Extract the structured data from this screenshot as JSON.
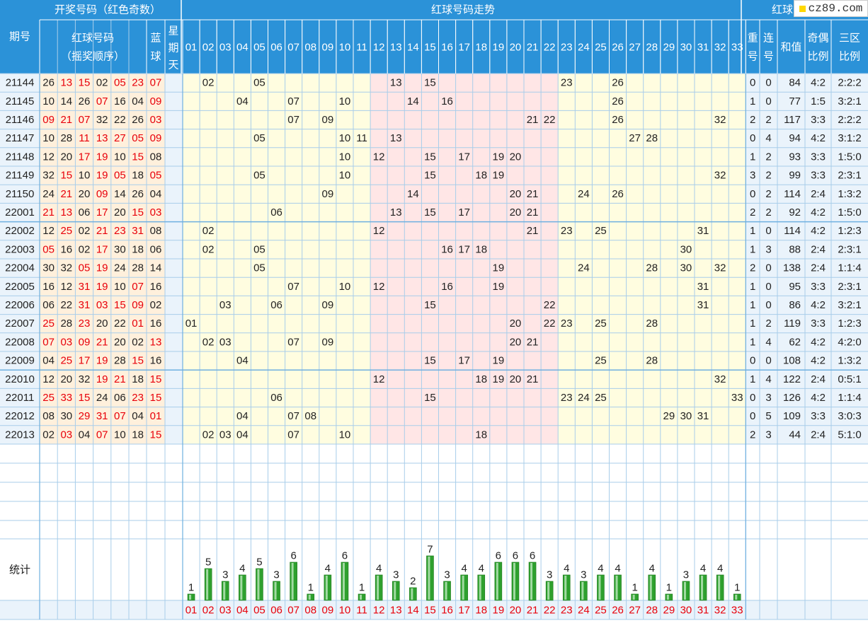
{
  "logo": "cz89.com",
  "header": {
    "period": "期号",
    "draw_group": "开奖号码（红色奇数）",
    "red_numbers": "红球号码",
    "red_numbers_sub": "（摇奖顺序）",
    "blue": [
      "蓝",
      "球"
    ],
    "weekday": [
      "星",
      "期",
      "天"
    ],
    "trend": "红球号码走势",
    "right_group": "红球",
    "repeat": [
      "重",
      "号"
    ],
    "consecutive": [
      "连",
      "号"
    ],
    "sum": "和值",
    "odd_even": [
      "奇偶",
      "比例"
    ],
    "zone": [
      "三区",
      "比例"
    ]
  },
  "columns": [
    "01",
    "02",
    "03",
    "04",
    "05",
    "06",
    "07",
    "08",
    "09",
    "10",
    "11",
    "12",
    "13",
    "14",
    "15",
    "16",
    "17",
    "18",
    "19",
    "20",
    "21",
    "22",
    "23",
    "24",
    "25",
    "26",
    "27",
    "28",
    "29",
    "30",
    "31",
    "32",
    "33"
  ],
  "stats_label": "统计",
  "chart_data": {
    "type": "table",
    "rows": [
      {
        "period": "21144",
        "red": [
          "26",
          "13",
          "15",
          "02",
          "05",
          "23"
        ],
        "blue": "07",
        "repeat": "0",
        "consecutive": "0",
        "sum": "84",
        "odd_even": "4:2",
        "zone": "2:2:2"
      },
      {
        "period": "21145",
        "red": [
          "10",
          "14",
          "26",
          "07",
          "16",
          "04"
        ],
        "blue": "09",
        "repeat": "1",
        "consecutive": "0",
        "sum": "77",
        "odd_even": "1:5",
        "zone": "3:2:1"
      },
      {
        "period": "21146",
        "red": [
          "09",
          "21",
          "07",
          "32",
          "22",
          "26"
        ],
        "blue": "03",
        "repeat": "2",
        "consecutive": "2",
        "sum": "117",
        "odd_even": "3:3",
        "zone": "2:2:2"
      },
      {
        "period": "21147",
        "red": [
          "10",
          "28",
          "11",
          "13",
          "27",
          "05"
        ],
        "blue": "09",
        "repeat": "0",
        "consecutive": "4",
        "sum": "94",
        "odd_even": "4:2",
        "zone": "3:1:2"
      },
      {
        "period": "21148",
        "red": [
          "12",
          "20",
          "17",
          "19",
          "10",
          "15"
        ],
        "blue": "08",
        "repeat": "1",
        "consecutive": "2",
        "sum": "93",
        "odd_even": "3:3",
        "zone": "1:5:0"
      },
      {
        "period": "21149",
        "red": [
          "32",
          "15",
          "10",
          "19",
          "05",
          "18"
        ],
        "blue": "05",
        "repeat": "3",
        "consecutive": "2",
        "sum": "99",
        "odd_even": "3:3",
        "zone": "2:3:1"
      },
      {
        "period": "21150",
        "red": [
          "24",
          "21",
          "20",
          "09",
          "14",
          "26"
        ],
        "blue": "04",
        "repeat": "0",
        "consecutive": "2",
        "sum": "114",
        "odd_even": "2:4",
        "zone": "1:3:2"
      },
      {
        "period": "22001",
        "red": [
          "21",
          "13",
          "06",
          "17",
          "20",
          "15"
        ],
        "blue": "03",
        "repeat": "2",
        "consecutive": "2",
        "sum": "92",
        "odd_even": "4:2",
        "zone": "1:5:0"
      },
      {
        "period": "22002",
        "red": [
          "12",
          "25",
          "02",
          "21",
          "23",
          "31"
        ],
        "blue": "08",
        "repeat": "1",
        "consecutive": "0",
        "sum": "114",
        "odd_even": "4:2",
        "zone": "1:2:3"
      },
      {
        "period": "22003",
        "red": [
          "05",
          "16",
          "02",
          "17",
          "30",
          "18"
        ],
        "blue": "06",
        "repeat": "1",
        "consecutive": "3",
        "sum": "88",
        "odd_even": "2:4",
        "zone": "2:3:1"
      },
      {
        "period": "22004",
        "red": [
          "30",
          "32",
          "05",
          "19",
          "24",
          "28"
        ],
        "blue": "14",
        "repeat": "2",
        "consecutive": "0",
        "sum": "138",
        "odd_even": "2:4",
        "zone": "1:1:4"
      },
      {
        "period": "22005",
        "red": [
          "16",
          "12",
          "31",
          "19",
          "10",
          "07"
        ],
        "blue": "16",
        "repeat": "1",
        "consecutive": "0",
        "sum": "95",
        "odd_even": "3:3",
        "zone": "2:3:1"
      },
      {
        "period": "22006",
        "red": [
          "06",
          "22",
          "31",
          "03",
          "15",
          "09"
        ],
        "blue": "02",
        "repeat": "1",
        "consecutive": "0",
        "sum": "86",
        "odd_even": "4:2",
        "zone": "3:2:1"
      },
      {
        "period": "22007",
        "red": [
          "25",
          "28",
          "23",
          "20",
          "22",
          "01"
        ],
        "blue": "16",
        "repeat": "1",
        "consecutive": "2",
        "sum": "119",
        "odd_even": "3:3",
        "zone": "1:2:3"
      },
      {
        "period": "22008",
        "red": [
          "07",
          "03",
          "09",
          "21",
          "20",
          "02"
        ],
        "blue": "13",
        "repeat": "1",
        "consecutive": "4",
        "sum": "62",
        "odd_even": "4:2",
        "zone": "4:2:0"
      },
      {
        "period": "22009",
        "red": [
          "04",
          "25",
          "17",
          "19",
          "28",
          "15"
        ],
        "blue": "16",
        "repeat": "0",
        "consecutive": "0",
        "sum": "108",
        "odd_even": "4:2",
        "zone": "1:3:2"
      },
      {
        "period": "22010",
        "red": [
          "12",
          "20",
          "32",
          "19",
          "21",
          "18"
        ],
        "blue": "15",
        "repeat": "1",
        "consecutive": "4",
        "sum": "122",
        "odd_even": "2:4",
        "zone": "0:5:1"
      },
      {
        "period": "22011",
        "red": [
          "25",
          "33",
          "15",
          "24",
          "06",
          "23"
        ],
        "blue": "15",
        "repeat": "0",
        "consecutive": "3",
        "sum": "126",
        "odd_even": "4:2",
        "zone": "1:1:4"
      },
      {
        "period": "22012",
        "red": [
          "08",
          "30",
          "29",
          "31",
          "07",
          "04"
        ],
        "blue": "01",
        "repeat": "0",
        "consecutive": "5",
        "sum": "109",
        "odd_even": "3:3",
        "zone": "3:0:3"
      },
      {
        "period": "22013",
        "red": [
          "02",
          "03",
          "04",
          "07",
          "10",
          "18"
        ],
        "blue": "15",
        "repeat": "2",
        "consecutive": "3",
        "sum": "44",
        "odd_even": "2:4",
        "zone": "5:1:0"
      }
    ],
    "stats": {
      "type": "bar",
      "categories": [
        "01",
        "02",
        "03",
        "04",
        "05",
        "06",
        "07",
        "08",
        "09",
        "10",
        "11",
        "12",
        "13",
        "14",
        "15",
        "16",
        "17",
        "18",
        "19",
        "20",
        "21",
        "22",
        "23",
        "24",
        "25",
        "26",
        "27",
        "28",
        "29",
        "30",
        "31",
        "32",
        "33"
      ],
      "values": [
        1,
        5,
        3,
        4,
        5,
        3,
        6,
        1,
        4,
        6,
        1,
        4,
        3,
        2,
        7,
        3,
        4,
        4,
        6,
        6,
        6,
        3,
        4,
        3,
        4,
        4,
        1,
        4,
        1,
        3,
        4,
        4,
        1
      ],
      "ylim": [
        0,
        7
      ]
    }
  },
  "colors": {
    "header_bg": "#2b92d8",
    "header_text": "#ffffff",
    "grid_line": "#a8cdea",
    "odd_red": "#e8000a",
    "even_text": "#222222",
    "row_bg": "#eaf3fb",
    "draw_bg": "#fff0dc",
    "zone_a_bg": "#fffde0",
    "zone_b_bg": "#ffe6e6",
    "right_bg": "#eaf3fb",
    "bar_green": "#2ea02e"
  }
}
